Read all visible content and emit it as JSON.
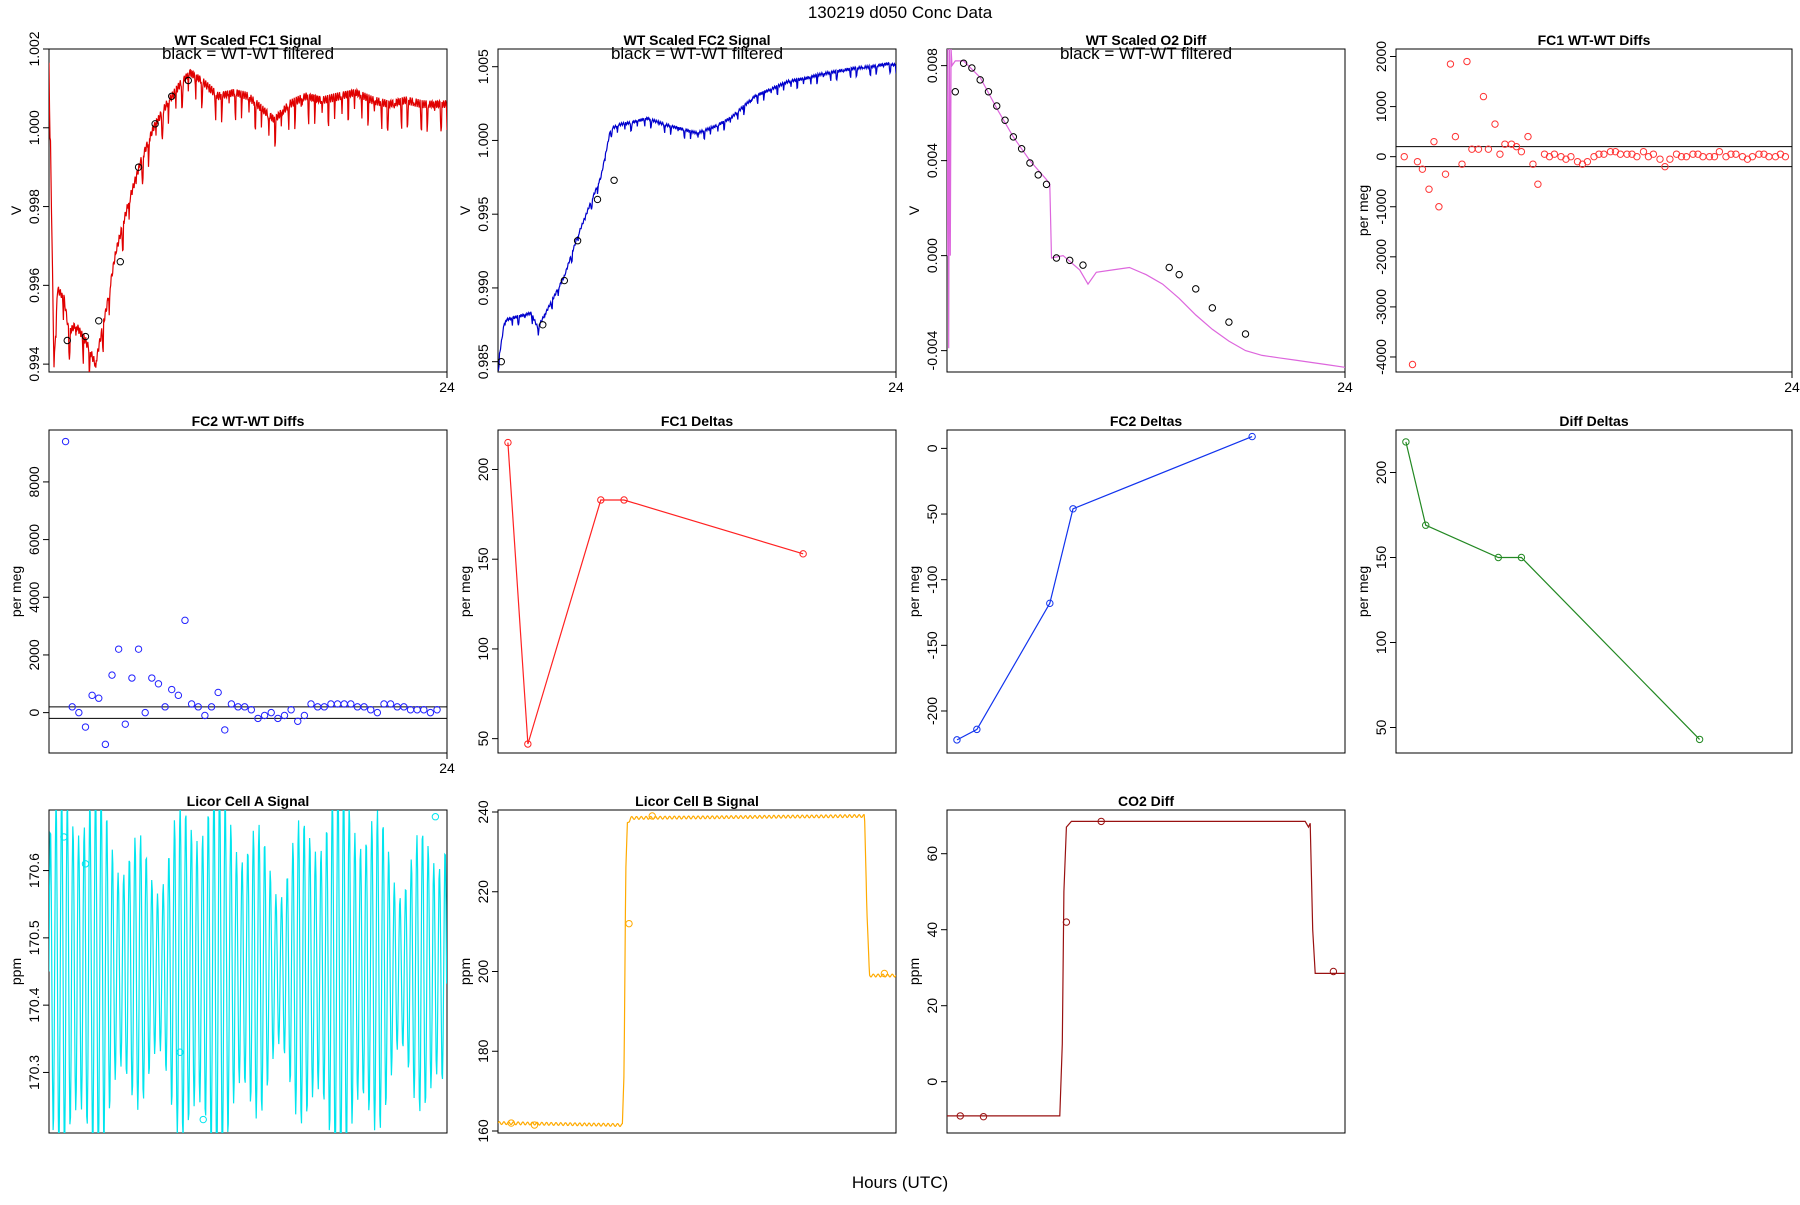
{
  "page_title": "130219   d050   Conc Data",
  "x_axis_label": "Hours (UTC)",
  "chart_data": [
    {
      "id": "fc1-signal",
      "type": "line",
      "title": "WT Scaled FC1 Signal",
      "subtitle": "black = WT-WT filtered",
      "ylabel": "V",
      "color": "#e00000",
      "xlim": [
        0,
        24
      ],
      "ylim": [
        0.9938,
        1.002
      ],
      "yticks": [
        0.994,
        0.996,
        0.998,
        1.0,
        1.002
      ],
      "ytick_labels": [
        "0.994",
        "0.996",
        "0.998",
        "1.000",
        "1.002"
      ],
      "xticks": [
        24
      ],
      "xtick_labels": [
        "24"
      ],
      "noise": 0.0007,
      "noise_period": 4,
      "series": [
        {
          "name": "FC1 signal",
          "x": [
            0,
            0.3,
            0.5,
            0.9,
            1.2,
            1.6,
            2.2,
            2.8,
            3.5,
            4.0,
            4.8,
            5.5,
            6.3,
            7.1,
            7.9,
            8.5,
            9.2,
            10.2,
            11.2,
            12.0,
            12.8,
            13.6,
            14.5,
            15.5,
            16.5,
            17.5,
            18.5,
            19.5,
            20.5,
            21.5,
            22.5,
            24
          ],
          "y": [
            1.002,
            0.9939,
            0.9959,
            0.9957,
            0.9948,
            0.995,
            0.9946,
            0.994,
            0.9955,
            0.9968,
            0.9981,
            0.9991,
            1.0,
            1.0006,
            1.0011,
            1.0014,
            1.0012,
            1.0008,
            1.0009,
            1.0008,
            1.0005,
            1.0002,
            1.0006,
            1.0008,
            1.0007,
            1.0008,
            1.0009,
            1.0007,
            1.0006,
            1.0007,
            1.0006,
            1.0006
          ]
        }
      ],
      "markers": {
        "color": "#000000",
        "x": [
          1.1,
          2.2,
          3.0,
          4.3,
          5.4,
          6.4,
          7.4,
          8.4
        ],
        "y": [
          0.9946,
          0.9947,
          0.9951,
          0.9966,
          0.999,
          1.0001,
          1.0008,
          1.0012
        ]
      }
    },
    {
      "id": "fc2-signal",
      "type": "line",
      "title": "WT Scaled FC2 Signal",
      "subtitle": "black = WT-WT filtered",
      "ylabel": "V",
      "color": "#0000cc",
      "xlim": [
        0,
        24
      ],
      "ylim": [
        0.9843,
        1.0062
      ],
      "yticks": [
        0.985,
        0.99,
        0.995,
        1.0,
        1.005
      ],
      "ytick_labels": [
        "0.985",
        "0.990",
        "0.995",
        "1.000",
        "1.005"
      ],
      "xticks": [
        24
      ],
      "xtick_labels": [
        "24"
      ],
      "noise": 0.0006,
      "noise_period": 4,
      "series": [
        {
          "name": "FC2 signal",
          "x": [
            0,
            0.4,
            1.0,
            2.0,
            2.4,
            3.2,
            4.0,
            4.8,
            5.6,
            6.2,
            6.8,
            7.4,
            8.0,
            9.0,
            10.0,
            11.0,
            12.0,
            13.0,
            14.0,
            14.5,
            15.5,
            16.5,
            17.5,
            18.5,
            19.5,
            20.5,
            21.5,
            22.5,
            23.5,
            24
          ],
          "y": [
            0.9848,
            0.9878,
            0.988,
            0.9883,
            0.9873,
            0.989,
            0.9908,
            0.9935,
            0.9958,
            0.9975,
            1.0008,
            1.0011,
            1.0012,
            1.0015,
            1.0011,
            1.0008,
            1.0005,
            1.0009,
            1.0015,
            1.002,
            1.003,
            1.0035,
            1.004,
            1.0042,
            1.0045,
            1.0047,
            1.0049,
            1.005,
            1.0052,
            1.0051
          ]
        }
      ],
      "markers": {
        "color": "#000000",
        "x": [
          0.2,
          2.7,
          4.0,
          4.8,
          6.0,
          7.0
        ],
        "y": [
          0.985,
          0.9875,
          0.9905,
          0.9932,
          0.996,
          0.9973
        ]
      }
    },
    {
      "id": "o2-diff",
      "type": "line",
      "title": "WT Scaled O2 Diff",
      "subtitle": "black = WT-WT filtered",
      "ylabel": "V",
      "color": "#dd66dd",
      "xlim": [
        0,
        24
      ],
      "ylim": [
        -0.0049,
        0.0087
      ],
      "yticks": [
        -0.004,
        0.0,
        0.004,
        0.008
      ],
      "ytick_labels": [
        "-0.004",
        "0.000",
        "0.004",
        "0.008"
      ],
      "xticks": [
        24
      ],
      "xtick_labels": [
        "24"
      ],
      "noise": 0,
      "noise_period": 4,
      "series": [
        {
          "name": "O2 diff",
          "x": [
            0,
            0.05,
            0.1,
            0.15,
            0.2,
            0.25,
            0.3,
            0.5,
            1.0,
            2.0,
            3.0,
            4.0,
            5.0,
            6.0,
            6.2,
            6.3,
            7.0,
            8.0,
            8.5,
            9.0,
            10.0,
            11.0,
            12.0,
            13.0,
            14.0,
            15.0,
            16.0,
            17.0,
            18.0,
            19.0,
            20.0,
            21.0,
            22.0,
            23.0,
            24.0
          ],
          "y": [
            0.0,
            0.0087,
            -0.0039,
            0.0087,
            0.0,
            0.0087,
            0.008,
            0.0082,
            0.0082,
            0.0075,
            0.0062,
            0.005,
            0.004,
            0.0032,
            0.003,
            -0.0001,
            0.0,
            -0.0006,
            -0.0012,
            -0.0007,
            -0.0006,
            -0.0005,
            -0.0008,
            -0.0012,
            -0.0018,
            -0.0025,
            -0.0031,
            -0.0036,
            -0.004,
            -0.0042,
            -0.0043,
            -0.0044,
            -0.0045,
            -0.0046,
            -0.0047
          ]
        }
      ],
      "markers": {
        "color": "#000000",
        "x": [
          0.5,
          1.0,
          1.5,
          2.0,
          2.5,
          3.0,
          3.5,
          4.0,
          4.5,
          5.0,
          5.5,
          6.0,
          6.6,
          7.4,
          8.2,
          13.4,
          14.0,
          15.0,
          16.0,
          17.0,
          18.0
        ],
        "y": [
          0.0069,
          0.0081,
          0.0079,
          0.0074,
          0.0069,
          0.0063,
          0.0057,
          0.005,
          0.0045,
          0.0039,
          0.0034,
          0.003,
          -0.0001,
          -0.0002,
          -0.0004,
          -0.0005,
          -0.0008,
          -0.0014,
          -0.0022,
          -0.0028,
          -0.0033
        ]
      }
    },
    {
      "id": "fc1-wtwt-diffs",
      "type": "scatter",
      "title": "FC1 WT-WT Diffs",
      "ylabel": "per meg",
      "color": "#ff3333",
      "xlim": [
        0,
        24
      ],
      "ylim": [
        -4300,
        2150
      ],
      "yticks": [
        -4000,
        -3000,
        -2000,
        -1000,
        0,
        1000,
        2000
      ],
      "ytick_labels": [
        "-4000",
        "-3000",
        "-2000",
        "-1000",
        "0",
        "1000",
        "2000"
      ],
      "xticks": [
        24
      ],
      "xtick_labels": [
        "24"
      ],
      "hlines": [
        200,
        -200
      ],
      "series": [
        {
          "name": "FC1 diffs",
          "x": [
            0.5,
            1.0,
            1.3,
            1.6,
            2.0,
            2.3,
            2.6,
            3.0,
            3.3,
            3.6,
            4.0,
            4.3,
            4.6,
            5.0,
            5.3,
            5.6,
            6.0,
            6.3,
            6.6,
            7.0,
            7.3,
            7.6,
            8.0,
            8.3,
            8.6,
            9.0,
            9.3,
            9.6,
            10.0,
            10.3,
            10.6,
            11.0,
            11.3,
            11.6,
            12.0,
            12.3,
            12.6,
            13.0,
            13.3,
            13.6,
            14.0,
            14.3,
            14.6,
            15.0,
            15.3,
            15.6,
            16.0,
            16.3,
            16.6,
            17.0,
            17.3,
            17.6,
            18.0,
            18.3,
            18.6,
            19.0,
            19.3,
            19.6,
            20.0,
            20.3,
            20.6,
            21.0,
            21.3,
            21.6,
            22.0,
            22.3,
            22.6,
            23.0,
            23.3,
            23.6
          ],
          "y": [
            0,
            -4150,
            -100,
            -250,
            -650,
            300,
            -1000,
            -350,
            1850,
            400,
            -150,
            1900,
            150,
            150,
            1200,
            150,
            650,
            50,
            250,
            250,
            200,
            100,
            400,
            -150,
            -550,
            50,
            0,
            50,
            0,
            -50,
            0,
            -100,
            -150,
            -100,
            0,
            50,
            50,
            100,
            100,
            50,
            50,
            50,
            0,
            100,
            0,
            50,
            -50,
            -200,
            -50,
            50,
            0,
            0,
            50,
            50,
            0,
            0,
            0,
            100,
            0,
            50,
            50,
            0,
            -50,
            0,
            50,
            50,
            0,
            0,
            50,
            0
          ]
        }
      ]
    },
    {
      "id": "fc2-wtwt-diffs",
      "type": "scatter",
      "title": "FC2 WT-WT Diffs",
      "ylabel": "per meg",
      "color": "#2222ff",
      "xlim": [
        0,
        24
      ],
      "ylim": [
        -1400,
        9800
      ],
      "yticks": [
        0,
        2000,
        4000,
        6000,
        8000
      ],
      "ytick_labels": [
        "0",
        "2000",
        "4000",
        "6000",
        "8000"
      ],
      "xticks": [
        24
      ],
      "xtick_labels": [
        "24"
      ],
      "hlines": [
        200,
        -200
      ],
      "series": [
        {
          "name": "FC2 diffs",
          "x": [
            1.0,
            1.4,
            1.8,
            2.2,
            2.6,
            3.0,
            3.4,
            3.8,
            4.2,
            4.6,
            5.0,
            5.4,
            5.8,
            6.2,
            6.6,
            7.0,
            7.4,
            7.8,
            8.2,
            8.6,
            9.0,
            9.4,
            9.8,
            10.2,
            10.6,
            11.0,
            11.4,
            11.8,
            12.2,
            12.6,
            13.0,
            13.4,
            13.8,
            14.2,
            14.6,
            15.0,
            15.4,
            15.8,
            16.2,
            16.6,
            17.0,
            17.4,
            17.8,
            18.2,
            18.6,
            19.0,
            19.4,
            19.8,
            20.2,
            20.6,
            21.0,
            21.4,
            21.8,
            22.2,
            22.6,
            23.0,
            23.4
          ],
          "y": [
            9400,
            200,
            0,
            -500,
            600,
            500,
            -1100,
            1300,
            2200,
            -400,
            1200,
            2200,
            0,
            1200,
            1000,
            200,
            800,
            600,
            3200,
            300,
            200,
            -100,
            200,
            700,
            -600,
            300,
            200,
            200,
            100,
            -200,
            -100,
            0,
            -200,
            -100,
            100,
            -300,
            -100,
            300,
            200,
            200,
            300,
            300,
            300,
            300,
            200,
            200,
            100,
            0,
            300,
            300,
            200,
            200,
            100,
            100,
            100,
            0,
            100
          ]
        }
      ]
    },
    {
      "id": "fc1-deltas",
      "type": "line",
      "title": "FC1 Deltas",
      "ylabel": "per meg",
      "color": "#ff2222",
      "xlim": [
        0,
        24
      ],
      "ylim": [
        42,
        222
      ],
      "yticks": [
        50,
        100,
        150,
        200
      ],
      "ytick_labels": [
        "50",
        "100",
        "150",
        "200"
      ],
      "xticks": [],
      "xtick_labels": [],
      "show_points": true,
      "series": [
        {
          "name": "FC1 deltas",
          "x": [
            0.6,
            1.8,
            6.2,
            7.6,
            18.4
          ],
          "y": [
            215,
            47,
            183,
            183,
            153
          ]
        }
      ]
    },
    {
      "id": "fc2-deltas",
      "type": "line",
      "title": "FC2 Deltas",
      "ylabel": "per meg",
      "color": "#1133ee",
      "xlim": [
        0,
        24
      ],
      "ylim": [
        -232,
        14
      ],
      "yticks": [
        -200,
        -150,
        -100,
        -50,
        0
      ],
      "ytick_labels": [
        "-200",
        "-150",
        "-100",
        "-50",
        "0"
      ],
      "xticks": [],
      "xtick_labels": [],
      "show_points": true,
      "series": [
        {
          "name": "FC2 deltas",
          "x": [
            0.6,
            1.8,
            6.2,
            7.6,
            18.4
          ],
          "y": [
            -222,
            -214,
            -118,
            -46,
            9
          ]
        }
      ]
    },
    {
      "id": "diff-deltas",
      "type": "line",
      "title": "Diff Deltas",
      "ylabel": "per meg",
      "color": "#228822",
      "xlim": [
        0,
        24
      ],
      "ylim": [
        35,
        225
      ],
      "yticks": [
        50,
        100,
        150,
        200
      ],
      "ytick_labels": [
        "50",
        "100",
        "150",
        "200"
      ],
      "xticks": [],
      "xtick_labels": [],
      "show_points": true,
      "series": [
        {
          "name": "Diff deltas",
          "x": [
            0.6,
            1.8,
            6.2,
            7.6,
            18.4
          ],
          "y": [
            218,
            169,
            150,
            150,
            43
          ]
        }
      ]
    },
    {
      "id": "licor-a",
      "type": "line",
      "title": "Licor Cell A Signal",
      "ylabel": "ppm",
      "color": "#00e5ee",
      "xlim": [
        0,
        24
      ],
      "ylim": [
        170.21,
        170.69
      ],
      "yticks": [
        170.3,
        170.4,
        170.5,
        170.6
      ],
      "ytick_labels": [
        "170.3",
        "170.4",
        "170.5",
        "170.6"
      ],
      "xticks": [],
      "xtick_labels": [],
      "oscillate": {
        "center": 170.45,
        "amp": 0.27,
        "period": 0.34
      },
      "series": [
        {
          "name": "Cell A",
          "x": [
            0,
            24
          ],
          "y": [
            170.45,
            170.45
          ]
        }
      ],
      "markers": {
        "color": "#00e5ee",
        "x": [
          0.9,
          2.2,
          7.9,
          9.3,
          23.3
        ],
        "y": [
          170.65,
          170.61,
          170.33,
          170.23,
          170.68
        ]
      }
    },
    {
      "id": "licor-b",
      "type": "line",
      "title": "Licor Cell B Signal",
      "ylabel": "ppm",
      "color": "#ffaa00",
      "xlim": [
        0,
        24
      ],
      "ylim": [
        159.5,
        240.5
      ],
      "yticks": [
        160,
        180,
        200,
        220,
        240
      ],
      "ytick_labels": [
        "160",
        "180",
        "200",
        "220",
        "240"
      ],
      "xticks": [],
      "xtick_labels": [],
      "ripple": 0.35,
      "series": [
        {
          "name": "Cell B",
          "x": [
            0,
            7.5,
            7.6,
            7.7,
            7.8,
            8.0,
            22.1,
            22.25,
            22.4,
            24
          ],
          "y": [
            162,
            161.5,
            175,
            225,
            237,
            238.5,
            239,
            215,
            199,
            199
          ]
        }
      ],
      "markers": {
        "color": "#ffaa00",
        "x": [
          0.8,
          2.2,
          7.9,
          9.3,
          23.3
        ],
        "y": [
          162,
          161.5,
          212,
          239,
          199.5
        ]
      }
    },
    {
      "id": "co2-diff",
      "type": "line",
      "title": "CO2 Diff",
      "ylabel": "ppm",
      "color": "#991111",
      "xlim": [
        0,
        24
      ],
      "ylim": [
        -13.5,
        71.5
      ],
      "yticks": [
        0,
        20,
        40,
        60
      ],
      "ytick_labels": [
        "0",
        "20",
        "40",
        "60"
      ],
      "xticks": [],
      "xtick_labels": [],
      "ripple": 0,
      "series": [
        {
          "name": "CO2 diff",
          "x": [
            0,
            6.8,
            6.95,
            7.05,
            7.2,
            7.5,
            21.6,
            21.8,
            21.9,
            22.05,
            22.2,
            24
          ],
          "y": [
            -9,
            -9,
            10,
            50,
            67,
            68.5,
            68.5,
            67,
            68,
            40,
            28.5,
            28.5
          ]
        }
      ],
      "markers": {
        "color": "#991111",
        "x": [
          0.8,
          2.2,
          7.2,
          9.3,
          23.3
        ],
        "y": [
          -9,
          -9.2,
          42,
          68.5,
          29
        ]
      }
    }
  ]
}
